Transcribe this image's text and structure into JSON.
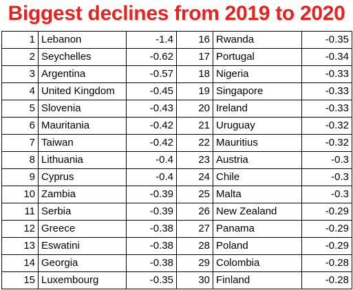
{
  "title": "Biggest declines from 2019 to 2020",
  "rows": [
    {
      "left": {
        "rank": "1",
        "country": "Lebanon",
        "value": "-1.4"
      },
      "right": {
        "rank": "16",
        "country": "Rwanda",
        "value": "-0.35"
      }
    },
    {
      "left": {
        "rank": "2",
        "country": "Seychelles",
        "value": "-0.62"
      },
      "right": {
        "rank": "17",
        "country": "Portugal",
        "value": "-0.34"
      }
    },
    {
      "left": {
        "rank": "3",
        "country": "Argentina",
        "value": "-0.57"
      },
      "right": {
        "rank": "18",
        "country": "Nigeria",
        "value": "-0.33"
      }
    },
    {
      "left": {
        "rank": "4",
        "country": "United Kingdom",
        "value": "-0.45"
      },
      "right": {
        "rank": "19",
        "country": "Singapore",
        "value": "-0.33"
      }
    },
    {
      "left": {
        "rank": "5",
        "country": "Slovenia",
        "value": "-0.43"
      },
      "right": {
        "rank": "20",
        "country": "Ireland",
        "value": "-0.33"
      }
    },
    {
      "left": {
        "rank": "6",
        "country": "Mauritania",
        "value": "-0.42"
      },
      "right": {
        "rank": "21",
        "country": "Uruguay",
        "value": "-0.32"
      }
    },
    {
      "left": {
        "rank": "7",
        "country": "Taiwan",
        "value": "-0.42"
      },
      "right": {
        "rank": "22",
        "country": "Mauritius",
        "value": "-0.32"
      }
    },
    {
      "left": {
        "rank": "8",
        "country": "Lithuania",
        "value": "-0.4"
      },
      "right": {
        "rank": "23",
        "country": "Austria",
        "value": "-0.3"
      }
    },
    {
      "left": {
        "rank": "9",
        "country": "Cyprus",
        "value": "-0.4"
      },
      "right": {
        "rank": "24",
        "country": "Chile",
        "value": "-0.3"
      }
    },
    {
      "left": {
        "rank": "10",
        "country": "Zambia",
        "value": "-0.39"
      },
      "right": {
        "rank": "25",
        "country": "Malta",
        "value": "-0.3"
      }
    },
    {
      "left": {
        "rank": "11",
        "country": "Serbia",
        "value": "-0.39"
      },
      "right": {
        "rank": "26",
        "country": "New Zealand",
        "value": "-0.29"
      }
    },
    {
      "left": {
        "rank": "12",
        "country": "Greece",
        "value": "-0.38"
      },
      "right": {
        "rank": "27",
        "country": "Panama",
        "value": "-0.29"
      }
    },
    {
      "left": {
        "rank": "13",
        "country": "Eswatini",
        "value": "-0.38"
      },
      "right": {
        "rank": "28",
        "country": "Poland",
        "value": "-0.29"
      }
    },
    {
      "left": {
        "rank": "14",
        "country": "Georgia",
        "value": "-0.38"
      },
      "right": {
        "rank": "29",
        "country": "Colombia",
        "value": "-0.28"
      }
    },
    {
      "left": {
        "rank": "15",
        "country": "Luxembourg",
        "value": "-0.35"
      },
      "right": {
        "rank": "30",
        "country": "Finland",
        "value": "-0.28"
      }
    }
  ],
  "colors": {
    "title": "#e8231f",
    "grid": "#000000"
  }
}
